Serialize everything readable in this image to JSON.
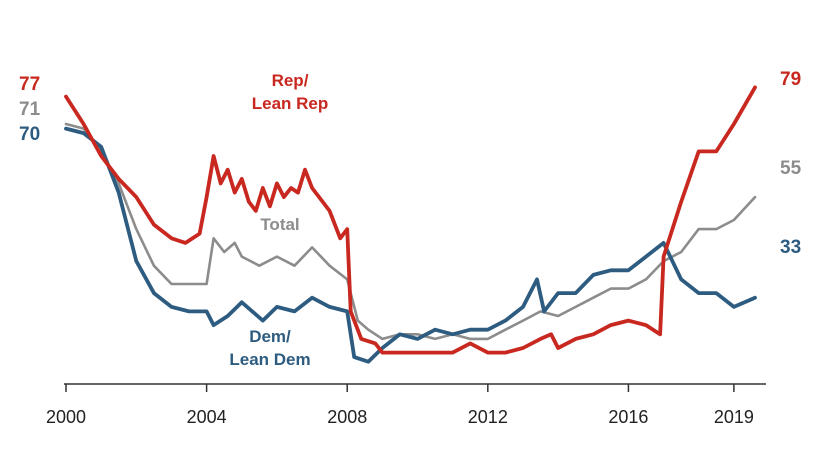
{
  "chart_data": {
    "type": "line",
    "title": "",
    "xlabel": "",
    "ylabel": "",
    "xlim": [
      2000,
      2019.8
    ],
    "ylim": [
      15,
      85
    ],
    "grid": false,
    "legend": "inline labels",
    "x_ticks": [
      "2000",
      "2004",
      "2008",
      "2012",
      "2016",
      "2019"
    ],
    "series": [
      {
        "name": "Rep/ Lean Rep",
        "label_lines": [
          "Rep/",
          "Lean Rep"
        ],
        "color": "#c8281f",
        "start_label": "77",
        "end_label": "79",
        "points": [
          [
            2000,
            77
          ],
          [
            2000.5,
            71
          ],
          [
            2001,
            64
          ],
          [
            2001.5,
            59
          ],
          [
            2002,
            55
          ],
          [
            2002.5,
            49
          ],
          [
            2003,
            46
          ],
          [
            2003.4,
            45
          ],
          [
            2003.8,
            47
          ],
          [
            2004.0,
            55
          ],
          [
            2004.2,
            64
          ],
          [
            2004.4,
            58
          ],
          [
            2004.6,
            61
          ],
          [
            2004.8,
            56
          ],
          [
            2005.0,
            59
          ],
          [
            2005.2,
            54
          ],
          [
            2005.4,
            52
          ],
          [
            2005.6,
            57
          ],
          [
            2005.8,
            53
          ],
          [
            2006.0,
            58
          ],
          [
            2006.2,
            55
          ],
          [
            2006.4,
            57
          ],
          [
            2006.6,
            56
          ],
          [
            2006.8,
            61
          ],
          [
            2007.0,
            57
          ],
          [
            2007.2,
            55
          ],
          [
            2007.5,
            52
          ],
          [
            2007.8,
            46
          ],
          [
            2008.0,
            48
          ],
          [
            2008.1,
            30
          ],
          [
            2008.4,
            24
          ],
          [
            2008.8,
            23
          ],
          [
            2009,
            21
          ],
          [
            2009.5,
            21
          ],
          [
            2010,
            21
          ],
          [
            2010.5,
            21
          ],
          [
            2011,
            21
          ],
          [
            2011.5,
            23
          ],
          [
            2012,
            21
          ],
          [
            2012.5,
            21
          ],
          [
            2013,
            22
          ],
          [
            2013.5,
            24
          ],
          [
            2013.8,
            25
          ],
          [
            2014,
            22
          ],
          [
            2014.5,
            24
          ],
          [
            2015,
            25
          ],
          [
            2015.5,
            27
          ],
          [
            2016,
            28
          ],
          [
            2016.5,
            27
          ],
          [
            2016.9,
            25
          ],
          [
            2017,
            42
          ],
          [
            2017.5,
            54
          ],
          [
            2018,
            65
          ],
          [
            2018.5,
            65
          ],
          [
            2019,
            71
          ],
          [
            2019.6,
            79
          ]
        ]
      },
      {
        "name": "Total",
        "label_lines": [
          "Total"
        ],
        "color": "#8c8c8c",
        "start_label": "71",
        "end_label": "55",
        "points": [
          [
            2000,
            71
          ],
          [
            2000.5,
            70
          ],
          [
            2001,
            65
          ],
          [
            2001.5,
            58
          ],
          [
            2002,
            48
          ],
          [
            2002.5,
            40
          ],
          [
            2003,
            36
          ],
          [
            2003.5,
            36
          ],
          [
            2004,
            36
          ],
          [
            2004.2,
            46
          ],
          [
            2004.5,
            43
          ],
          [
            2004.8,
            45
          ],
          [
            2005,
            42
          ],
          [
            2005.5,
            40
          ],
          [
            2006,
            42
          ],
          [
            2006.5,
            40
          ],
          [
            2007,
            44
          ],
          [
            2007.5,
            40
          ],
          [
            2008,
            37
          ],
          [
            2008.3,
            28
          ],
          [
            2008.6,
            26
          ],
          [
            2009,
            24
          ],
          [
            2009.5,
            25
          ],
          [
            2010,
            25
          ],
          [
            2010.5,
            24
          ],
          [
            2011,
            25
          ],
          [
            2011.5,
            24
          ],
          [
            2012,
            24
          ],
          [
            2012.5,
            26
          ],
          [
            2013,
            28
          ],
          [
            2013.5,
            30
          ],
          [
            2014,
            29
          ],
          [
            2014.5,
            31
          ],
          [
            2015,
            33
          ],
          [
            2015.5,
            35
          ],
          [
            2016,
            35
          ],
          [
            2016.5,
            37
          ],
          [
            2017,
            41
          ],
          [
            2017.5,
            43
          ],
          [
            2018,
            48
          ],
          [
            2018.5,
            48
          ],
          [
            2019,
            50
          ],
          [
            2019.6,
            55
          ]
        ]
      },
      {
        "name": "Dem/ Lean Dem",
        "label_lines": [
          "Dem/",
          "Lean Dem"
        ],
        "color": "#2e5c80",
        "start_label": "70",
        "end_label": "33",
        "points": [
          [
            2000,
            70
          ],
          [
            2000.5,
            69
          ],
          [
            2001,
            66
          ],
          [
            2001.5,
            56
          ],
          [
            2002,
            41
          ],
          [
            2002.5,
            34
          ],
          [
            2003,
            31
          ],
          [
            2003.5,
            30
          ],
          [
            2004,
            30
          ],
          [
            2004.2,
            27
          ],
          [
            2004.6,
            29
          ],
          [
            2005,
            32
          ],
          [
            2005.3,
            30
          ],
          [
            2005.6,
            28
          ],
          [
            2006,
            31
          ],
          [
            2006.5,
            30
          ],
          [
            2007,
            33
          ],
          [
            2007.5,
            31
          ],
          [
            2008,
            30
          ],
          [
            2008.2,
            20
          ],
          [
            2008.6,
            19
          ],
          [
            2009,
            22
          ],
          [
            2009.5,
            25
          ],
          [
            2010,
            24
          ],
          [
            2010.5,
            26
          ],
          [
            2011,
            25
          ],
          [
            2011.5,
            26
          ],
          [
            2012,
            26
          ],
          [
            2012.5,
            28
          ],
          [
            2013,
            31
          ],
          [
            2013.4,
            37
          ],
          [
            2013.6,
            30
          ],
          [
            2014,
            34
          ],
          [
            2014.5,
            34
          ],
          [
            2015,
            38
          ],
          [
            2015.5,
            39
          ],
          [
            2016,
            39
          ],
          [
            2016.5,
            42
          ],
          [
            2017,
            45
          ],
          [
            2017.5,
            37
          ],
          [
            2018,
            34
          ],
          [
            2018.5,
            34
          ],
          [
            2019,
            31
          ],
          [
            2019.6,
            33
          ]
        ]
      }
    ]
  }
}
